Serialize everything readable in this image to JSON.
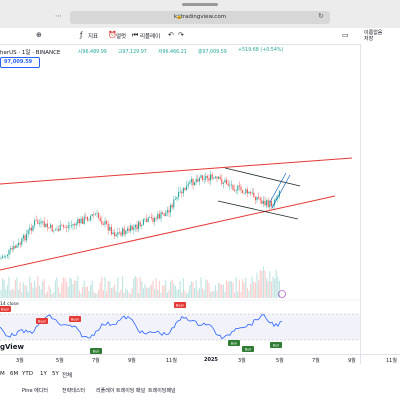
{
  "browser": {
    "url": "kr.tradingview.com",
    "lock_icon": "lock-icon",
    "tabs_icon": "menu-glyph",
    "reload_icon": "reload-icon"
  },
  "toolbar": {
    "compare_icon": "plus-icon",
    "interval_label": "지표",
    "alert_label": "얼럿",
    "replay_label": "리플레이",
    "undo_icon": "undo-icon",
    "redo_icon": "redo-icon",
    "layout_icon": "layout-icon",
    "user_label": "이름없음",
    "save_label": "저장"
  },
  "header": {
    "symbol": "herUS · 1일 · BINANCE",
    "open": "시96,489.99",
    "high": "고97,129.97",
    "low": "저96,466.21",
    "close": "종97,009.59",
    "change": "+519.68 (+0.54%)",
    "price_box": "97,009.59"
  },
  "rsi": {
    "label": "14 close",
    "signals": [
      "Bear",
      "Bear",
      "Bear",
      "Bull",
      "Bear",
      "Bull",
      "Bull",
      "Bull"
    ]
  },
  "logo": "gView",
  "time_axis": {
    "ticks": [
      "3월",
      "5월",
      "7월",
      "9월",
      "11월",
      "2025",
      "3월",
      "5월",
      "7월",
      "9월",
      "11월"
    ]
  },
  "range_buttons": [
    "M",
    "6M",
    "YTD",
    "1Y",
    "5Y",
    "전체"
  ],
  "bottom_tabs": [
    "Pine 에디터",
    "전략테스터",
    "리플레이 트레이딩 패널",
    "트레이딩패널"
  ],
  "colors": {
    "up": "#26a69a",
    "down": "#ef5350",
    "trend_line": "#e53935",
    "channel": "#1e2a24",
    "rsi_line": "#2962ff",
    "bear": "#e53935",
    "bull": "#2e7d32"
  }
}
